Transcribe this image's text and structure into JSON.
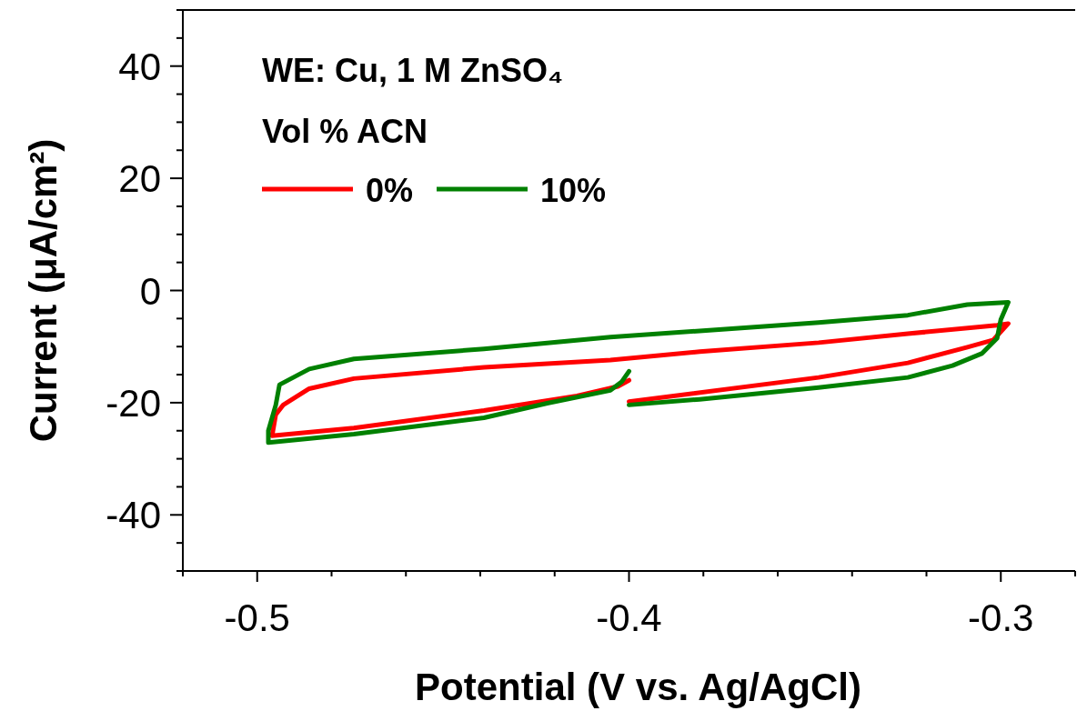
{
  "chart_data": {
    "type": "line",
    "xlabel": "Potential (V vs. Ag/AgCl)",
    "ylabel": "Current (μA/cm²)",
    "legend_title": "Vol % ACN",
    "annotations": [
      "WE: Cu, 1 M ZnSO₄"
    ],
    "xlim": [
      -0.52,
      -0.28
    ],
    "ylim": [
      -50,
      50
    ],
    "xticks": [
      {
        "value": -0.52,
        "label": null
      },
      -0.5,
      {
        "value": -0.48,
        "label": null
      },
      {
        "value": -0.46,
        "label": null
      },
      {
        "value": -0.44,
        "label": null
      },
      {
        "value": -0.42,
        "label": null
      },
      -0.4,
      {
        "value": -0.38,
        "label": null
      },
      {
        "value": -0.36,
        "label": null
      },
      {
        "value": -0.34,
        "label": null
      },
      {
        "value": -0.32,
        "label": null
      },
      -0.3,
      {
        "value": -0.28,
        "label": null
      }
    ],
    "yticks": [
      {
        "value": -50,
        "label": null
      },
      {
        "value": -45,
        "label": null
      },
      -40,
      {
        "value": -35,
        "label": null
      },
      {
        "value": -30,
        "label": null
      },
      {
        "value": -25,
        "label": null
      },
      -20,
      {
        "value": -15,
        "label": null
      },
      {
        "value": -10,
        "label": null
      },
      {
        "value": -5,
        "label": null
      },
      0,
      {
        "value": 5,
        "label": null
      },
      {
        "value": 10,
        "label": null
      },
      {
        "value": 15,
        "label": null
      },
      20,
      {
        "value": 25,
        "label": null
      },
      {
        "value": 30,
        "label": null
      },
      {
        "value": 35,
        "label": null
      },
      40,
      {
        "value": 45,
        "label": null
      },
      {
        "value": 50,
        "label": null
      }
    ],
    "grid": false,
    "legend": "top left",
    "marker": "none",
    "line_style": "solid",
    "series": [
      {
        "name": "0%",
        "color": "#ff0000",
        "x": [
          -0.4,
          -0.349,
          -0.325,
          -0.309,
          -0.302,
          -0.298,
          -0.301,
          -0.325,
          -0.349,
          -0.381,
          -0.405,
          -0.439,
          -0.474,
          -0.486,
          -0.493,
          -0.495,
          -0.496,
          -0.474,
          -0.439,
          -0.414,
          -0.403,
          -0.4
        ],
        "values": [
          -19.8,
          -15.5,
          -12.9,
          -10.1,
          -8.8,
          -5.9,
          -6.2,
          -7.7,
          -9.3,
          -10.9,
          -12.4,
          -13.7,
          -15.7,
          -17.5,
          -20.4,
          -22.1,
          -25.9,
          -24.5,
          -21.4,
          -18.8,
          -17.1,
          -16.0
        ]
      },
      {
        "name": "10%",
        "color": "#008000",
        "x": [
          -0.4,
          -0.381,
          -0.349,
          -0.325,
          -0.313,
          -0.305,
          -0.301,
          -0.3,
          -0.298,
          -0.309,
          -0.325,
          -0.349,
          -0.381,
          -0.405,
          -0.439,
          -0.474,
          -0.486,
          -0.494,
          -0.495,
          -0.497,
          -0.497,
          -0.474,
          -0.439,
          -0.422,
          -0.405,
          -0.402,
          -0.4
        ],
        "values": [
          -20.4,
          -19.4,
          -17.3,
          -15.5,
          -13.4,
          -11.2,
          -8.5,
          -5.2,
          -2.1,
          -2.5,
          -4.4,
          -5.7,
          -7.2,
          -8.3,
          -10.4,
          -12.2,
          -14.0,
          -16.8,
          -20.4,
          -25.0,
          -27.1,
          -25.6,
          -22.7,
          -20.1,
          -17.8,
          -16.3,
          -14.4
        ]
      }
    ]
  }
}
